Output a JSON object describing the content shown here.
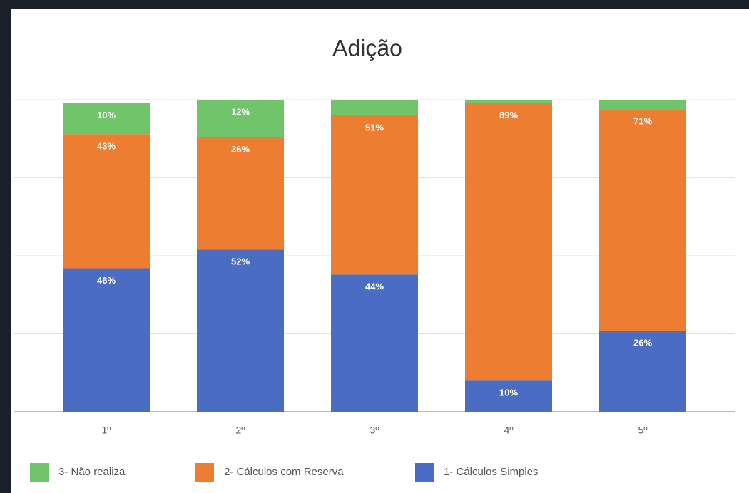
{
  "chart_data": {
    "type": "stacked-bar",
    "title": "Adição",
    "categories": [
      "1º",
      "2º",
      "3º",
      "4º",
      "5º"
    ],
    "series": [
      {
        "name": "1- Cálculos Simples",
        "color": "#4a6cc3",
        "values": [
          46,
          52,
          44,
          10,
          26
        ],
        "value_labels": [
          "46%",
          "52%",
          "44%",
          "10%",
          "26%"
        ]
      },
      {
        "name": "2- Cálculos com Reserva",
        "color": "#ed7d31",
        "values": [
          43,
          36,
          51,
          89,
          71
        ],
        "value_labels": [
          "43%",
          "36%",
          "51%",
          "89%",
          "71%"
        ]
      },
      {
        "name": "3- Não realiza",
        "color": "#70c46a",
        "values": [
          10,
          12,
          5,
          1,
          3
        ],
        "value_labels": [
          "10%",
          "12%",
          null,
          null,
          null
        ]
      }
    ],
    "ylim": [
      0,
      100
    ],
    "yticks": [
      0,
      25,
      50,
      75,
      100
    ],
    "grid": true
  }
}
